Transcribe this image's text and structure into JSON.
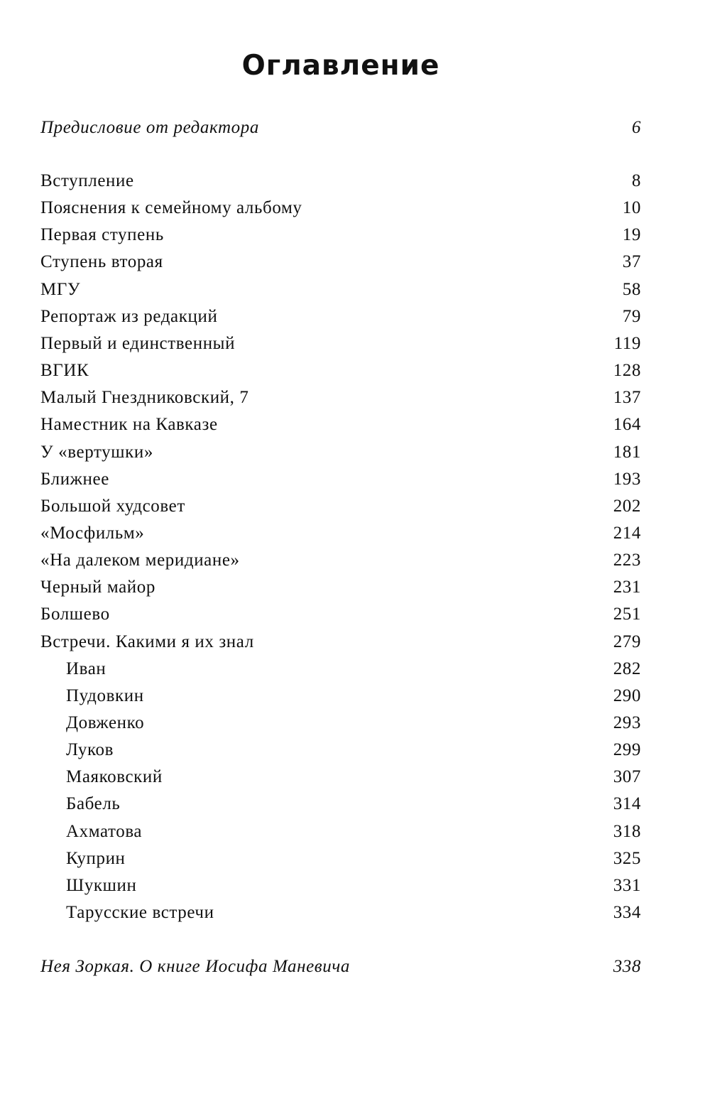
{
  "title": "Оглавление",
  "preface": {
    "label": "Предисловие от редактора",
    "page": "6"
  },
  "entries": [
    {
      "label": "Вступление",
      "page": "8"
    },
    {
      "label": "Пояснения к семейному альбому",
      "page": "10"
    },
    {
      "label": "Первая ступень",
      "page": "19"
    },
    {
      "label": "Ступень вторая",
      "page": "37"
    },
    {
      "label": "МГУ",
      "page": "58"
    },
    {
      "label": "Репортаж из редакций",
      "page": "79"
    },
    {
      "label": "Первый и единственный",
      "page": "119"
    },
    {
      "label": "ВГИК",
      "page": "128"
    },
    {
      "label": "Малый Гнездниковский, 7",
      "page": "137"
    },
    {
      "label": "Наместник на Кавказе",
      "page": "164"
    },
    {
      "label": "У «вертушки»",
      "page": "181"
    },
    {
      "label": "Ближнее",
      "page": "193"
    },
    {
      "label": "Большой худсовет",
      "page": "202"
    },
    {
      "label": "«Мосфильм»",
      "page": "214"
    },
    {
      "label": "«На далеком меридиане»",
      "page": "223"
    },
    {
      "label": "Черный майор",
      "page": "231"
    },
    {
      "label": "Болшево",
      "page": "251"
    },
    {
      "label": "Встречи. Какими я их знал",
      "page": "279"
    },
    {
      "label": "Иван",
      "page": "282",
      "sub": true
    },
    {
      "label": "Пудовкин",
      "page": "290",
      "sub": true
    },
    {
      "label": "Довженко",
      "page": "293",
      "sub": true
    },
    {
      "label": "Луков",
      "page": "299",
      "sub": true
    },
    {
      "label": "Маяковский",
      "page": "307",
      "sub": true
    },
    {
      "label": "Бабель",
      "page": "314",
      "sub": true
    },
    {
      "label": "Ахматова",
      "page": "318",
      "sub": true
    },
    {
      "label": "Куприн",
      "page": "325",
      "sub": true
    },
    {
      "label": "Шукшин",
      "page": "331",
      "sub": true
    },
    {
      "label": "Тарусские встречи",
      "page": "334",
      "sub": true
    }
  ],
  "afterword": {
    "label": "Нея Зоркая. О книге Иосифа Маневича",
    "page": "338"
  }
}
